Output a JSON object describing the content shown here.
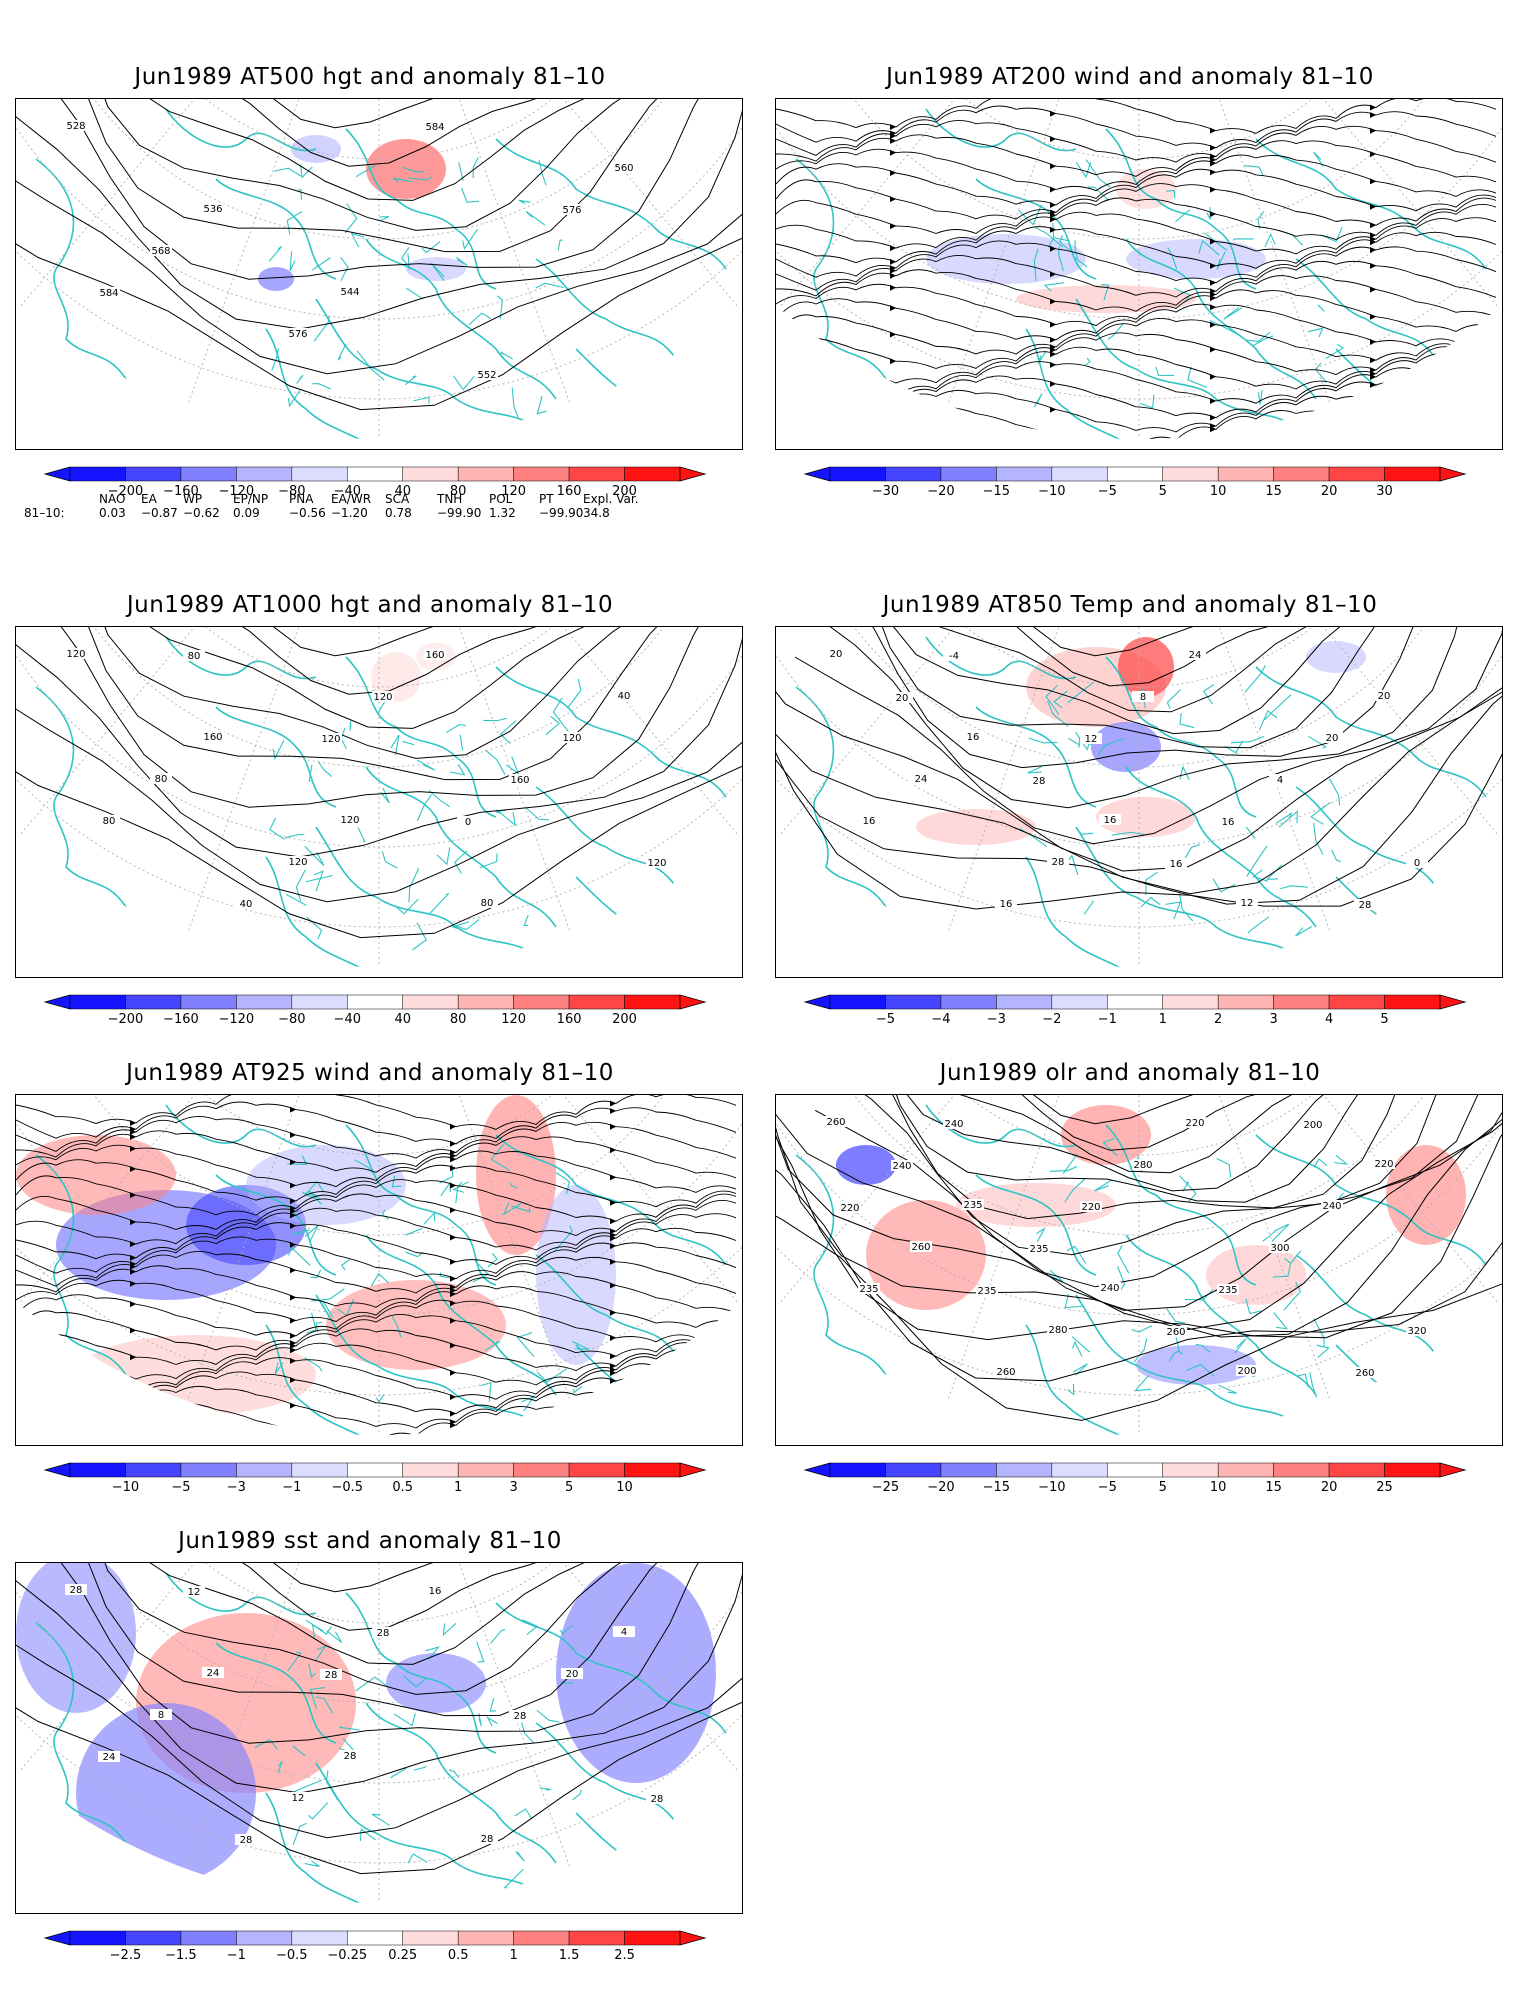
{
  "panels": [
    {
      "title": "Jun1989 AT500 hgt and anomaly 81–10",
      "type": "hgt",
      "contour_labels": [
        "528",
        "536",
        "544",
        "552",
        "560",
        "568",
        "576",
        "584",
        "576",
        "584"
      ],
      "colorbar": {
        "ticks": [
          "−200",
          "−160",
          "−120",
          "−80",
          "−40",
          "40",
          "80",
          "120",
          "160",
          "200"
        ]
      }
    },
    {
      "title": "Jun1989 AT200 wind and anomaly 81–10",
      "type": "wind",
      "contour_labels": [],
      "colorbar": {
        "ticks": [
          "−30",
          "−20",
          "−15",
          "−10",
          "−5",
          "5",
          "10",
          "15",
          "20",
          "30"
        ]
      }
    },
    {
      "title": "Jun1989 AT1000 hgt and anomaly 81–10",
      "type": "hgt",
      "contour_labels": [
        "120",
        "160",
        "120",
        "80",
        "40",
        "80",
        "120",
        "160",
        "120",
        "80",
        "40",
        "120",
        "160",
        "120",
        "80",
        "120",
        "0"
      ],
      "colorbar": {
        "ticks": [
          "−200",
          "−160",
          "−120",
          "−80",
          "−40",
          "40",
          "80",
          "120",
          "160",
          "200"
        ]
      }
    },
    {
      "title": "Jun1989 AT850 Temp and anomaly 81–10",
      "type": "temp",
      "contour_labels": [
        "20",
        "16",
        "16",
        "12",
        "20",
        "24",
        "28",
        "24",
        "20",
        "16",
        "16",
        "8",
        "4",
        "0",
        "-4",
        "12",
        "16",
        "28",
        "20",
        "28",
        "16"
      ],
      "colorbar": {
        "ticks": [
          "−5",
          "−4",
          "−3",
          "−2",
          "−1",
          "1",
          "2",
          "3",
          "4",
          "5"
        ]
      }
    },
    {
      "title": "Jun1989 AT925 wind and anomaly 81–10",
      "type": "wind",
      "contour_labels": [],
      "colorbar": {
        "ticks": [
          "−10",
          "−5",
          "−3",
          "−1",
          "−0.5",
          "0.5",
          "1",
          "3",
          "5",
          "10"
        ]
      }
    },
    {
      "title": "Jun1989 olr and anomaly 81–10",
      "type": "olr",
      "contour_labels": [
        "260",
        "235",
        "240",
        "200",
        "220",
        "260",
        "280",
        "220",
        "240",
        "235",
        "260",
        "280",
        "300",
        "320",
        "240",
        "220",
        "235",
        "260",
        "240",
        "235",
        "260",
        "200",
        "220",
        "235"
      ],
      "colorbar": {
        "ticks": [
          "−25",
          "−20",
          "−15",
          "−10",
          "−5",
          "5",
          "10",
          "15",
          "20",
          "25"
        ]
      }
    },
    {
      "title": "Jun1989 sst and anomaly 81–10",
      "type": "sst",
      "contour_labels": [
        "28",
        "24",
        "28",
        "28",
        "4",
        "8",
        "12",
        "16",
        "20",
        "24",
        "28",
        "28",
        "28",
        "28",
        "12",
        "28"
      ],
      "colorbar": {
        "ticks": [
          "−2.5",
          "−1.5",
          "−1",
          "−0.5",
          "−0.25",
          "0.25",
          "0.5",
          "1",
          "1.5",
          "2.5"
        ]
      }
    }
  ],
  "indices": {
    "headers": [
      "NAO",
      "EA",
      "WP",
      "EP/NP",
      "PNA",
      "EA/WR",
      "SCA",
      "TNH",
      "POL",
      "PT",
      "Expl. Var."
    ],
    "row_label": "81–10:",
    "values": [
      "0.03",
      "−0.87",
      "−0.62",
      "0.09",
      "−0.56",
      "−1.20",
      "0.78",
      "−99.90",
      "1.32",
      "−99.90",
      "34.8"
    ]
  },
  "colors": {
    "coastline": "#2ec4c4",
    "contour": "#000000",
    "graticule": "#b0b0b0",
    "anomaly_scale": [
      "#1414ff",
      "#4646ff",
      "#8080ff",
      "#b4b4ff",
      "#dcdcff",
      "#ffffff",
      "#ffdcdc",
      "#ffb4b4",
      "#ff8080",
      "#ff4646",
      "#ff1414"
    ]
  }
}
